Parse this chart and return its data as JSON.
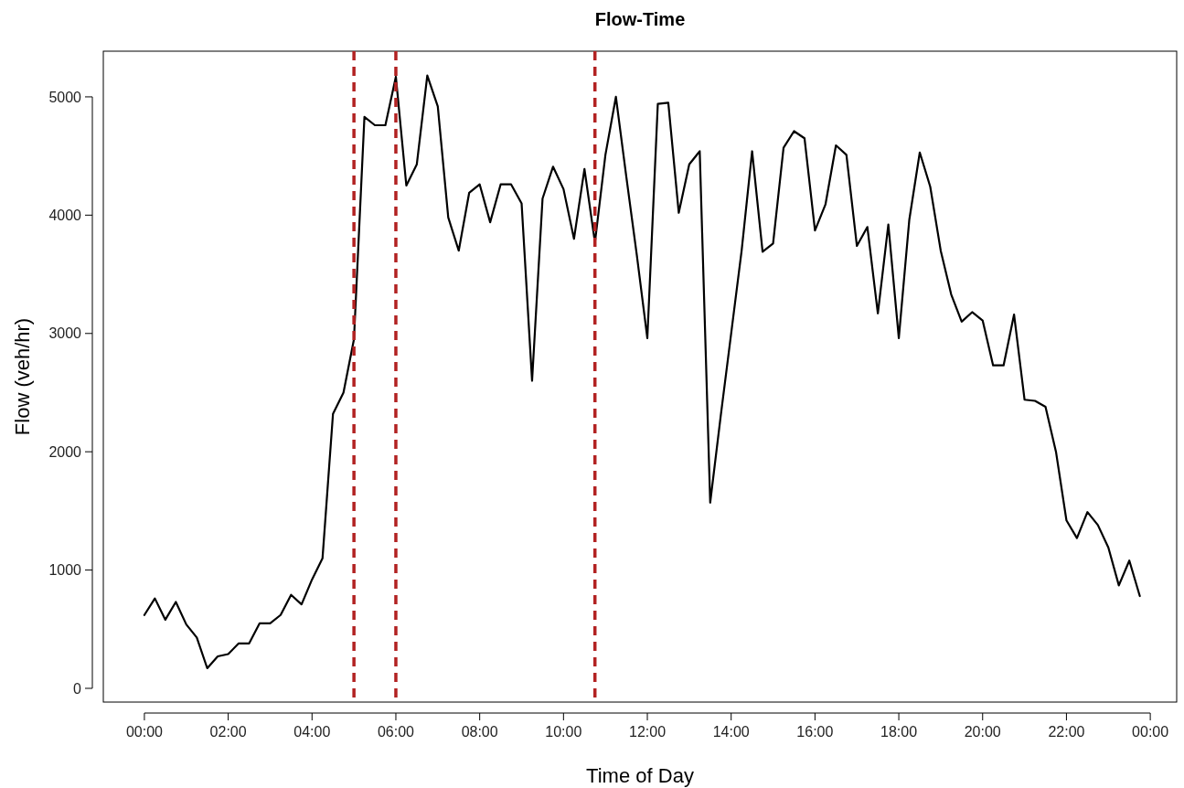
{
  "chart_data": {
    "type": "line",
    "title": "Flow-Time",
    "xlabel": "Time of Day",
    "ylabel": "Flow (veh/hr)",
    "x": [
      0,
      0.25,
      0.5,
      0.75,
      1,
      1.25,
      1.5,
      1.75,
      2,
      2.25,
      2.5,
      2.75,
      3,
      3.25,
      3.5,
      3.75,
      4,
      4.25,
      4.5,
      4.75,
      5,
      5.25,
      5.5,
      5.75,
      6,
      6.25,
      6.5,
      6.75,
      7,
      7.25,
      7.5,
      7.75,
      8,
      8.25,
      8.5,
      8.75,
      9,
      9.25,
      9.5,
      9.75,
      10,
      10.25,
      10.5,
      10.75,
      11,
      11.25,
      11.5,
      11.75,
      12,
      12.25,
      12.5,
      12.75,
      13,
      13.25,
      13.5,
      13.75,
      14,
      14.25,
      14.5,
      14.75,
      15,
      15.25,
      15.5,
      15.75,
      16,
      16.25,
      16.5,
      16.75,
      17,
      17.25,
      17.5,
      17.75,
      18,
      18.25,
      18.5,
      18.75,
      19,
      19.25,
      19.5,
      19.75,
      20,
      20.25,
      20.5,
      20.75,
      21,
      21.25,
      21.5,
      21.75,
      22,
      22.25,
      22.5,
      22.75,
      23,
      23.25,
      23.5,
      23.75
    ],
    "series": [
      {
        "color": "#000000",
        "values": [
          620,
          760,
          580,
          730,
          540,
          430,
          170,
          270,
          290,
          380,
          380,
          550,
          550,
          620,
          790,
          710,
          920,
          1100,
          2320,
          2500,
          2950,
          4830,
          4760,
          4760,
          5170,
          4250,
          4430,
          5180,
          4920,
          3980,
          3700,
          4190,
          4260,
          3940,
          4260,
          4260,
          4100,
          2600,
          4140,
          4410,
          4220,
          3800,
          4390,
          3770,
          4510,
          5000,
          4320,
          3660,
          2960,
          4940,
          4950,
          4020,
          4430,
          4540,
          1570,
          2300,
          3000,
          3700,
          4540,
          3690,
          3760,
          4570,
          4710,
          4650,
          3870,
          4090,
          4590,
          4510,
          3740,
          3900,
          3170,
          3920,
          2960,
          3960,
          4530,
          4240,
          3700,
          3330,
          3100,
          3180,
          3110,
          2730,
          2730,
          3160,
          2440,
          2430,
          2380,
          2000,
          1420,
          1270,
          1490,
          1380,
          1190,
          870,
          1080,
          780
        ]
      }
    ],
    "xlim": [
      -0.98,
      24.63
    ],
    "ylim": [
      -116,
      5386
    ],
    "xticks": [
      {
        "value": 0,
        "label": "00:00"
      },
      {
        "value": 2,
        "label": "02:00"
      },
      {
        "value": 4,
        "label": "04:00"
      },
      {
        "value": 6,
        "label": "06:00"
      },
      {
        "value": 8,
        "label": "08:00"
      },
      {
        "value": 10,
        "label": "10:00"
      },
      {
        "value": 12,
        "label": "12:00"
      },
      {
        "value": 14,
        "label": "14:00"
      },
      {
        "value": 16,
        "label": "16:00"
      },
      {
        "value": 18,
        "label": "18:00"
      },
      {
        "value": 20,
        "label": "20:00"
      },
      {
        "value": 22,
        "label": "22:00"
      },
      {
        "value": 24,
        "label": "00:00"
      }
    ],
    "yticks": [
      0,
      1000,
      2000,
      3000,
      4000,
      5000
    ],
    "ref_lines": [
      {
        "axis": "x",
        "value": 5,
        "color": "#b22222",
        "line_style": "dashed"
      },
      {
        "axis": "x",
        "value": 6,
        "color": "#b22222",
        "line_style": "dashed"
      },
      {
        "axis": "x",
        "value": 10.75,
        "color": "#b22222",
        "line_style": "dashed"
      }
    ],
    "grid": false,
    "marker": "none",
    "line_style": "solid"
  }
}
